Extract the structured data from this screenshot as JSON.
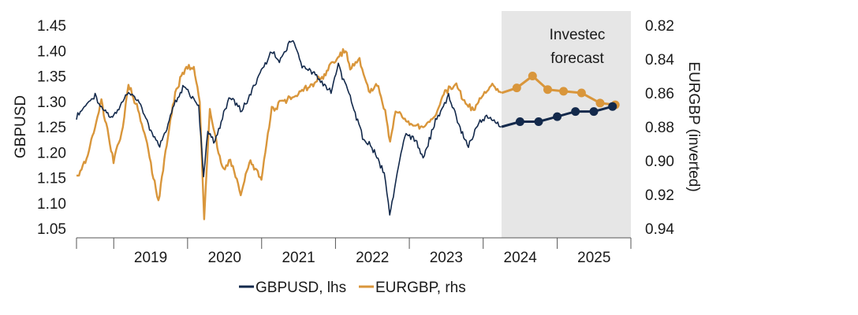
{
  "chart_data": {
    "type": "line",
    "title": "",
    "left_axis": {
      "label": "GBPUSD",
      "range": [
        1.05,
        1.45
      ],
      "ticks": [
        "1.45",
        "1.40",
        "1.35",
        "1.30",
        "1.25",
        "1.20",
        "1.15",
        "1.10",
        "1.05"
      ]
    },
    "right_axis": {
      "label": "EURGBP (inverted)",
      "inverted": true,
      "range": [
        0.82,
        0.94
      ],
      "ticks": [
        "0.82",
        "0.84",
        "0.86",
        "0.88",
        "0.90",
        "0.92",
        "0.94"
      ]
    },
    "x_axis": {
      "range": [
        "2018-07-01",
        "2025-12-31"
      ],
      "year_labels": [
        "2019",
        "2020",
        "2021",
        "2022",
        "2023",
        "2024",
        "2025"
      ],
      "year_boundaries": [
        "2019-01-01",
        "2020-01-01",
        "2021-01-01",
        "2022-01-01",
        "2023-01-01",
        "2024-01-01",
        "2025-01-01"
      ]
    },
    "forecast_region": {
      "start": "2024-04-01",
      "end": "2025-12-31",
      "label": [
        "Investec",
        "forecast"
      ],
      "color": "#e6e6e6"
    },
    "legend": {
      "position": "bottom"
    },
    "grid": false,
    "series": [
      {
        "name": "GBPUSD, lhs",
        "axis": "left",
        "color": "#13294b",
        "history": [
          [
            "2018-07-01",
            1.27
          ],
          [
            "2018-08-15",
            1.29
          ],
          [
            "2018-10-01",
            1.31
          ],
          [
            "2018-11-15",
            1.28
          ],
          [
            "2019-01-01",
            1.27
          ],
          [
            "2019-02-15",
            1.3
          ],
          [
            "2019-03-15",
            1.32
          ],
          [
            "2019-05-01",
            1.3
          ],
          [
            "2019-06-15",
            1.26
          ],
          [
            "2019-08-10",
            1.21
          ],
          [
            "2019-09-15",
            1.24
          ],
          [
            "2019-10-20",
            1.29
          ],
          [
            "2019-12-15",
            1.33
          ],
          [
            "2020-01-20",
            1.31
          ],
          [
            "2020-02-25",
            1.29
          ],
          [
            "2020-03-20",
            1.15
          ],
          [
            "2020-04-10",
            1.24
          ],
          [
            "2020-05-15",
            1.22
          ],
          [
            "2020-06-15",
            1.26
          ],
          [
            "2020-07-30",
            1.31
          ],
          [
            "2020-09-25",
            1.28
          ],
          [
            "2020-11-15",
            1.32
          ],
          [
            "2020-12-31",
            1.36
          ],
          [
            "2021-02-25",
            1.4
          ],
          [
            "2021-03-30",
            1.38
          ],
          [
            "2021-05-30",
            1.42
          ],
          [
            "2021-07-20",
            1.37
          ],
          [
            "2021-09-30",
            1.35
          ],
          [
            "2021-12-10",
            1.32
          ],
          [
            "2022-01-15",
            1.37
          ],
          [
            "2022-03-15",
            1.31
          ],
          [
            "2022-05-15",
            1.23
          ],
          [
            "2022-06-30",
            1.21
          ],
          [
            "2022-08-30",
            1.16
          ],
          [
            "2022-09-26",
            1.08
          ],
          [
            "2022-10-20",
            1.13
          ],
          [
            "2022-12-10",
            1.23
          ],
          [
            "2023-01-20",
            1.23
          ],
          [
            "2023-03-10",
            1.19
          ],
          [
            "2023-05-10",
            1.26
          ],
          [
            "2023-07-14",
            1.31
          ],
          [
            "2023-09-15",
            1.24
          ],
          [
            "2023-10-20",
            1.21
          ],
          [
            "2023-12-10",
            1.26
          ],
          [
            "2024-01-31",
            1.27
          ],
          [
            "2024-03-31",
            1.25
          ]
        ],
        "forecast": [
          [
            "2024-04-01",
            1.25
          ],
          [
            "2024-07-01",
            1.26
          ],
          [
            "2024-10-01",
            1.26
          ],
          [
            "2025-01-01",
            1.27
          ],
          [
            "2025-04-01",
            1.28
          ],
          [
            "2025-07-01",
            1.28
          ],
          [
            "2025-10-01",
            1.29
          ]
        ]
      },
      {
        "name": "EURGBP, rhs",
        "axis": "right",
        "color": "#d9963b",
        "history": [
          [
            "2018-07-01",
            0.91
          ],
          [
            "2018-08-20",
            0.9
          ],
          [
            "2018-09-30",
            0.88
          ],
          [
            "2018-11-01",
            0.865
          ],
          [
            "2018-12-31",
            0.9
          ],
          [
            "2019-02-15",
            0.88
          ],
          [
            "2019-03-15",
            0.855
          ],
          [
            "2019-05-01",
            0.87
          ],
          [
            "2019-06-15",
            0.89
          ],
          [
            "2019-08-10",
            0.925
          ],
          [
            "2019-09-20",
            0.89
          ],
          [
            "2019-11-01",
            0.86
          ],
          [
            "2019-12-20",
            0.845
          ],
          [
            "2020-02-01",
            0.845
          ],
          [
            "2020-03-01",
            0.865
          ],
          [
            "2020-03-23",
            0.935
          ],
          [
            "2020-04-20",
            0.87
          ],
          [
            "2020-06-20",
            0.905
          ],
          [
            "2020-07-30",
            0.9
          ],
          [
            "2020-09-20",
            0.92
          ],
          [
            "2020-11-01",
            0.9
          ],
          [
            "2020-12-31",
            0.91
          ],
          [
            "2021-02-20",
            0.87
          ],
          [
            "2021-04-20",
            0.865
          ],
          [
            "2021-07-01",
            0.86
          ],
          [
            "2021-09-01",
            0.855
          ],
          [
            "2021-11-01",
            0.85
          ],
          [
            "2022-01-01",
            0.84
          ],
          [
            "2022-02-20",
            0.835
          ],
          [
            "2022-03-15",
            0.845
          ],
          [
            "2022-04-30",
            0.84
          ],
          [
            "2022-06-15",
            0.86
          ],
          [
            "2022-08-01",
            0.855
          ],
          [
            "2022-09-10",
            0.875
          ],
          [
            "2022-09-28",
            0.89
          ],
          [
            "2022-10-25",
            0.87
          ],
          [
            "2022-12-10",
            0.875
          ],
          [
            "2023-01-20",
            0.88
          ],
          [
            "2023-03-10",
            0.88
          ],
          [
            "2023-05-01",
            0.875
          ],
          [
            "2023-06-20",
            0.86
          ],
          [
            "2023-08-15",
            0.855
          ],
          [
            "2023-09-30",
            0.865
          ],
          [
            "2023-11-15",
            0.87
          ],
          [
            "2024-01-01",
            0.86
          ],
          [
            "2024-02-15",
            0.855
          ],
          [
            "2024-03-31",
            0.86
          ]
        ],
        "forecast": [
          [
            "2024-04-01",
            0.86
          ],
          [
            "2024-06-15",
            0.857
          ],
          [
            "2024-09-01",
            0.85
          ],
          [
            "2024-11-15",
            0.858
          ],
          [
            "2025-02-01",
            0.859
          ],
          [
            "2025-05-01",
            0.86
          ],
          [
            "2025-08-01",
            0.866
          ],
          [
            "2025-10-15",
            0.867
          ]
        ]
      }
    ]
  }
}
